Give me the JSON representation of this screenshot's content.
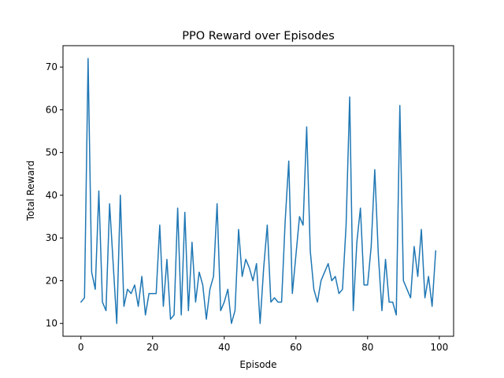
{
  "chart_data": {
    "type": "line",
    "title": "PPO Reward over Episodes",
    "xlabel": "Episode",
    "ylabel": "Total Reward",
    "xlim": [
      -5,
      104
    ],
    "ylim": [
      7,
      75
    ],
    "xticks": [
      0,
      20,
      40,
      60,
      80,
      100
    ],
    "yticks": [
      10,
      20,
      30,
      40,
      50,
      60,
      70
    ],
    "grid": false,
    "legend": "none",
    "series": [
      {
        "color": "#1f77b4",
        "x": [
          0,
          1,
          2,
          3,
          4,
          5,
          6,
          7,
          8,
          9,
          10,
          11,
          12,
          13,
          14,
          15,
          16,
          17,
          18,
          19,
          20,
          21,
          22,
          23,
          24,
          25,
          26,
          27,
          28,
          29,
          30,
          31,
          32,
          33,
          34,
          35,
          36,
          37,
          38,
          39,
          40,
          41,
          42,
          43,
          44,
          45,
          46,
          47,
          48,
          49,
          50,
          51,
          52,
          53,
          54,
          55,
          56,
          57,
          58,
          59,
          60,
          61,
          62,
          63,
          64,
          65,
          66,
          67,
          68,
          69,
          70,
          71,
          72,
          73,
          74,
          75,
          76,
          77,
          78,
          79,
          80,
          81,
          82,
          83,
          84,
          85,
          86,
          87,
          88,
          89,
          90,
          91,
          92,
          93,
          94,
          95,
          96,
          97,
          98,
          99
        ],
        "values": [
          15,
          16,
          72,
          22,
          18,
          41,
          15,
          13,
          38,
          24,
          10,
          40,
          14,
          18,
          17,
          19,
          14,
          21,
          12,
          17,
          17,
          17,
          33,
          14,
          25,
          11,
          12,
          37,
          12,
          36,
          13,
          29,
          15,
          22,
          19,
          11,
          18,
          21,
          38,
          13,
          15,
          18,
          10,
          13,
          32,
          21,
          25,
          23,
          20,
          24,
          10,
          23,
          33,
          15,
          16,
          15,
          15,
          34,
          48,
          17,
          26,
          35,
          33,
          56,
          27,
          18,
          15,
          20,
          22,
          24,
          20,
          21,
          17,
          18,
          33,
          63,
          13,
          29,
          37,
          19,
          19,
          28,
          46,
          26,
          13,
          25,
          15,
          15,
          12,
          61,
          20,
          18,
          16,
          28,
          21,
          32,
          16,
          21,
          14,
          27
        ]
      }
    ]
  }
}
